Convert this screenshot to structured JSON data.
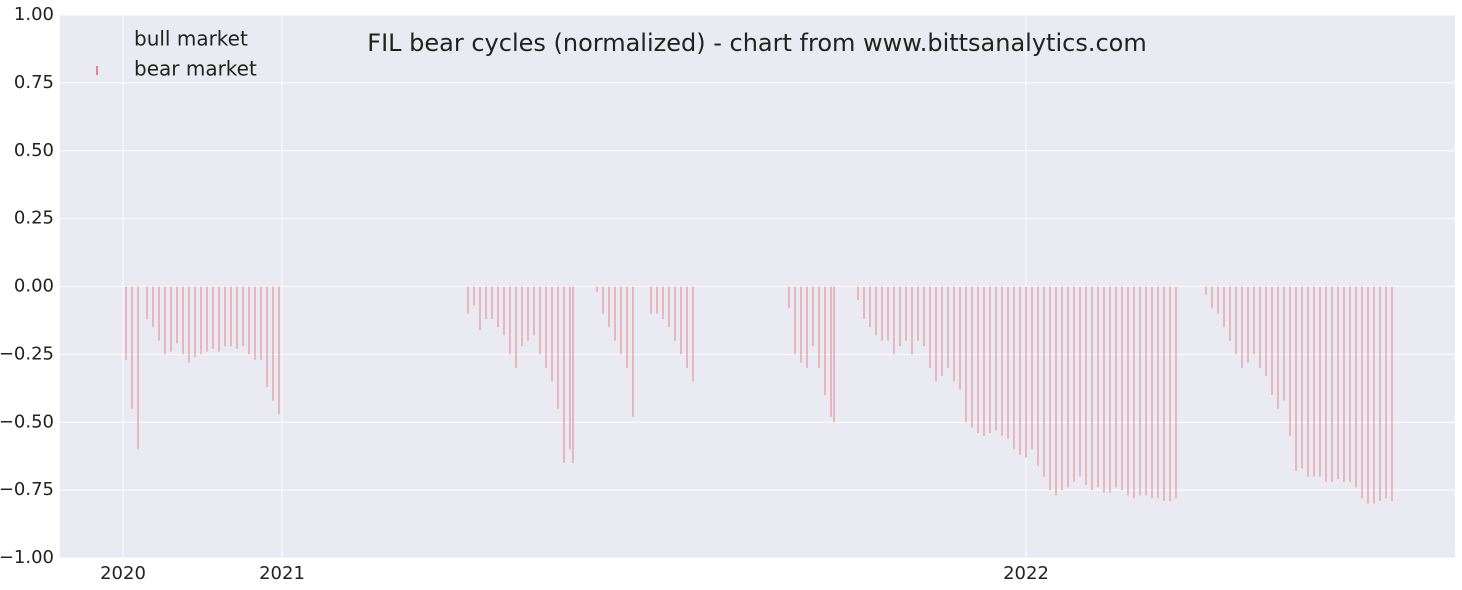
{
  "chart_data": {
    "type": "bar",
    "title": "FIL bear cycles (normalized)  - chart from www.bittsanalytics.com",
    "x": [
      22,
      24,
      26,
      29,
      31,
      33,
      35,
      37,
      39,
      41,
      43,
      45,
      47,
      49,
      51,
      53,
      55,
      57,
      59,
      61,
      63,
      65,
      67,
      69,
      71,
      73,
      136,
      138,
      140,
      142,
      144,
      146,
      148,
      150,
      152,
      154,
      156,
      158,
      160,
      162,
      164,
      166,
      168,
      170,
      171,
      179,
      181,
      183,
      185,
      187,
      189,
      191,
      197,
      199,
      201,
      203,
      205,
      207,
      209,
      211,
      243,
      245,
      247,
      249,
      251,
      253,
      255,
      257,
      258,
      266,
      268,
      270,
      272,
      274,
      276,
      278,
      280,
      282,
      284,
      286,
      288,
      290,
      292,
      294,
      296,
      298,
      300,
      302,
      304,
      306,
      308,
      310,
      312,
      314,
      316,
      318,
      320,
      322,
      324,
      326,
      328,
      330,
      332,
      334,
      336,
      338,
      340,
      342,
      344,
      346,
      348,
      350,
      352,
      354,
      356,
      358,
      360,
      362,
      364,
      366,
      368,
      370,
      372,
      382,
      384,
      386,
      388,
      390,
      392,
      394,
      396,
      398,
      400,
      402,
      404,
      406,
      408,
      410,
      412,
      414,
      416,
      418,
      420,
      422,
      424,
      426,
      428,
      430,
      432,
      434,
      436,
      438,
      440,
      442,
      444
    ],
    "series": [
      {
        "name": "bull market",
        "color": "#eaeaf2"
      },
      {
        "name": "bear market",
        "color": "#e8828c",
        "values": [
          -0.27,
          -0.45,
          -0.6,
          -0.12,
          -0.15,
          -0.2,
          -0.25,
          -0.24,
          -0.21,
          -0.25,
          -0.28,
          -0.26,
          -0.25,
          -0.24,
          -0.23,
          -0.24,
          -0.22,
          -0.22,
          -0.23,
          -0.22,
          -0.25,
          -0.27,
          -0.27,
          -0.37,
          -0.42,
          -0.47,
          -0.1,
          -0.07,
          -0.16,
          -0.12,
          -0.12,
          -0.15,
          -0.18,
          -0.25,
          -0.3,
          -0.22,
          -0.2,
          -0.18,
          -0.25,
          -0.3,
          -0.35,
          -0.45,
          -0.65,
          -0.6,
          -0.65,
          -0.02,
          -0.1,
          -0.15,
          -0.2,
          -0.25,
          -0.3,
          -0.48,
          -0.1,
          -0.1,
          -0.12,
          -0.15,
          -0.2,
          -0.25,
          -0.3,
          -0.35,
          -0.08,
          -0.25,
          -0.28,
          -0.3,
          -0.22,
          -0.3,
          -0.4,
          -0.48,
          -0.5,
          -0.05,
          -0.12,
          -0.15,
          -0.18,
          -0.2,
          -0.2,
          -0.25,
          -0.22,
          -0.2,
          -0.25,
          -0.2,
          -0.22,
          -0.3,
          -0.35,
          -0.33,
          -0.3,
          -0.35,
          -0.38,
          -0.5,
          -0.52,
          -0.54,
          -0.55,
          -0.54,
          -0.53,
          -0.55,
          -0.56,
          -0.6,
          -0.62,
          -0.63,
          -0.6,
          -0.66,
          -0.7,
          -0.75,
          -0.77,
          -0.75,
          -0.74,
          -0.72,
          -0.7,
          -0.73,
          -0.75,
          -0.74,
          -0.76,
          -0.76,
          -0.74,
          -0.75,
          -0.77,
          -0.78,
          -0.77,
          -0.77,
          -0.78,
          -0.78,
          -0.79,
          -0.79,
          -0.78,
          -0.03,
          -0.08,
          -0.1,
          -0.15,
          -0.2,
          -0.25,
          -0.3,
          -0.28,
          -0.25,
          -0.3,
          -0.33,
          -0.4,
          -0.45,
          -0.42,
          -0.55,
          -0.68,
          -0.67,
          -0.7,
          -0.7,
          -0.7,
          -0.72,
          -0.72,
          -0.71,
          -0.72,
          -0.72,
          -0.74,
          -0.78,
          -0.8,
          -0.8,
          -0.79,
          -0.78,
          -0.79
        ]
      }
    ],
    "xlim": [
      0,
      465
    ],
    "xticks": [
      {
        "value": 21,
        "label": "2020"
      },
      {
        "value": 74,
        "label": "2021"
      },
      {
        "value": 322,
        "label": "2022"
      }
    ],
    "ylim": [
      -1,
      1
    ],
    "yticks": [
      {
        "value": -1,
        "label": "−1.00"
      },
      {
        "value": -0.75,
        "label": "−0.75"
      },
      {
        "value": -0.5,
        "label": "−0.50"
      },
      {
        "value": -0.25,
        "label": "−0.25"
      },
      {
        "value": 0,
        "label": "0.00"
      },
      {
        "value": 0.25,
        "label": "0.25"
      },
      {
        "value": 0.5,
        "label": "0.50"
      },
      {
        "value": 0.75,
        "label": "0.75"
      },
      {
        "value": 1,
        "label": "1.00"
      }
    ],
    "grid": true,
    "legend": "upper left"
  }
}
